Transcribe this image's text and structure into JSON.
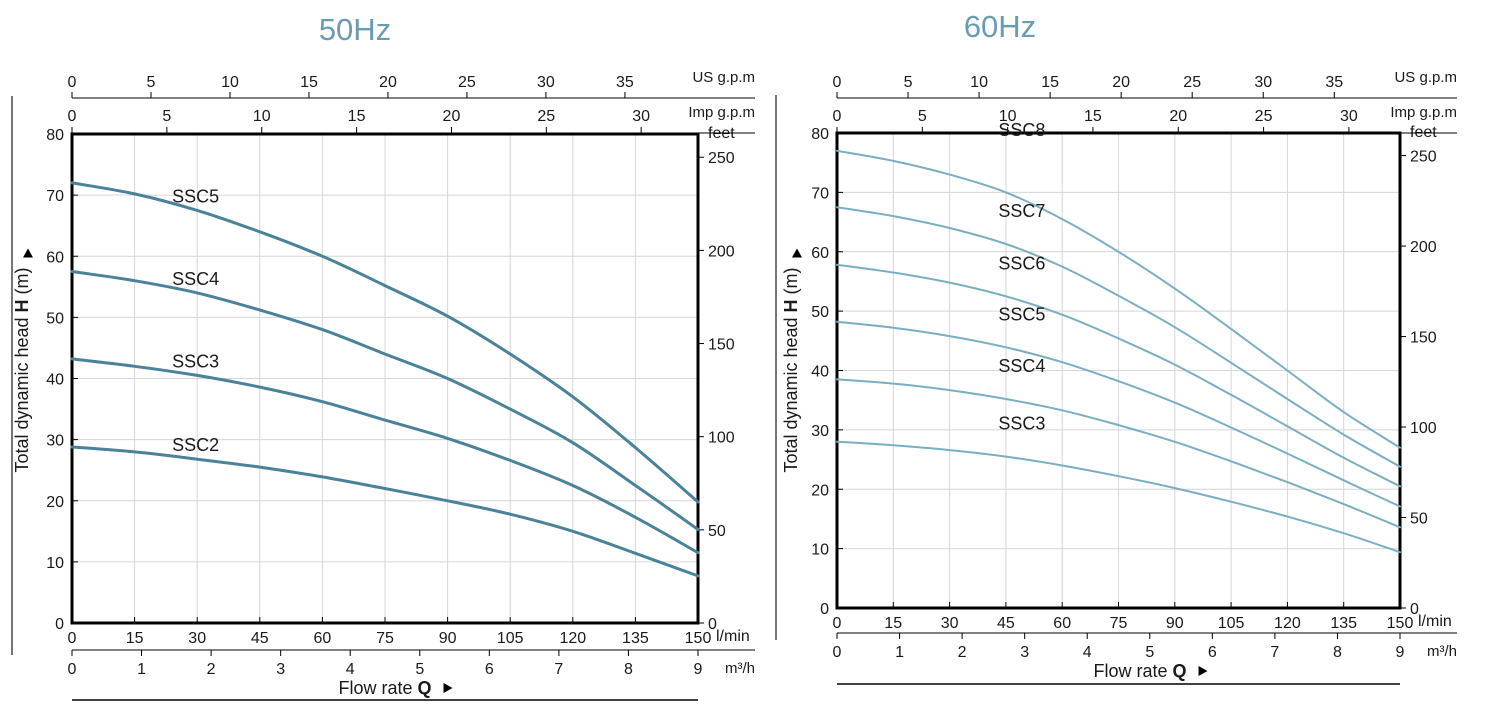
{
  "chart_data": [
    {
      "type": "line",
      "title": "50Hz",
      "ylabel": [
        "Total dynamic head ",
        "H",
        " (m)"
      ],
      "xlabel": [
        "Flow rate ",
        "Q"
      ],
      "x_unit": "l/min",
      "y_unit": "",
      "right_unit": "feet",
      "top1_unit": "US g.p.m",
      "top2_unit": "Imp g.p.m",
      "bottom2_unit": "m³/h",
      "xlim": [
        0,
        150
      ],
      "ylim": [
        0,
        80
      ],
      "xticks": [
        0,
        15,
        30,
        45,
        60,
        75,
        90,
        105,
        120,
        135,
        150
      ],
      "yticks": [
        0,
        10,
        20,
        30,
        40,
        50,
        60,
        70,
        80
      ],
      "grid": true,
      "feet_ticks": [
        0,
        50,
        100,
        150,
        200,
        250
      ],
      "usgpm_ticks": [
        0,
        5,
        10,
        15,
        20,
        25,
        30,
        35
      ],
      "impgpm_ticks": [
        0,
        5,
        10,
        15,
        20,
        25,
        30
      ],
      "m3h_ticks": [
        0,
        1,
        2,
        3,
        4,
        5,
        6,
        7,
        8,
        9
      ],
      "color": "#4a8299",
      "series": [
        {
          "name": "SSC5",
          "x": [
            0,
            15,
            30,
            45,
            60,
            75,
            90,
            105,
            120,
            135,
            150
          ],
          "values": [
            72,
            70.2,
            67.5,
            64,
            60,
            55.2,
            50.2,
            44,
            37,
            28.7,
            19.8
          ]
        },
        {
          "name": "SSC4",
          "x": [
            0,
            15,
            30,
            45,
            60,
            75,
            90,
            105,
            120,
            135,
            150
          ],
          "values": [
            57.5,
            56,
            54,
            51.2,
            48,
            44,
            40,
            35,
            29.5,
            22.5,
            15.3
          ]
        },
        {
          "name": "SSC3",
          "x": [
            0,
            15,
            30,
            45,
            60,
            75,
            90,
            105,
            120,
            135,
            150
          ],
          "values": [
            43.2,
            42,
            40.5,
            38.6,
            36.2,
            33.2,
            30.2,
            26.6,
            22.5,
            17.3,
            11.5
          ]
        },
        {
          "name": "SSC2",
          "x": [
            0,
            15,
            30,
            45,
            60,
            75,
            90,
            105,
            120,
            135,
            150
          ],
          "values": [
            28.8,
            28,
            26.8,
            25.5,
            23.9,
            22,
            20,
            17.8,
            15,
            11.4,
            7.7
          ]
        }
      ]
    },
    {
      "type": "line",
      "title": "60Hz",
      "ylabel": [
        "Total dynamic head ",
        "H",
        " (m)"
      ],
      "xlabel": [
        "Flow rate ",
        "Q"
      ],
      "x_unit": "l/min",
      "y_unit": "",
      "right_unit": "feet",
      "top1_unit": "US g.p.m",
      "top2_unit": "Imp g.p.m",
      "bottom2_unit": "m³/h",
      "xlim": [
        0,
        150
      ],
      "ylim": [
        0,
        80
      ],
      "xticks": [
        0,
        15,
        30,
        45,
        60,
        75,
        90,
        105,
        120,
        135,
        150
      ],
      "yticks": [
        0,
        10,
        20,
        30,
        40,
        50,
        60,
        70,
        80
      ],
      "grid": true,
      "feet_ticks": [
        0,
        50,
        100,
        150,
        200,
        250
      ],
      "usgpm_ticks": [
        0,
        5,
        10,
        15,
        20,
        25,
        30,
        35
      ],
      "impgpm_ticks": [
        0,
        5,
        10,
        15,
        20,
        25,
        30
      ],
      "m3h_ticks": [
        0,
        1,
        2,
        3,
        4,
        5,
        6,
        7,
        8,
        9
      ],
      "color": "#7aaec2",
      "series": [
        {
          "name": "SSC8",
          "x": [
            0,
            15,
            30,
            45,
            60,
            75,
            90,
            105,
            120,
            135,
            150
          ],
          "values": [
            77,
            75.3,
            73,
            70,
            65.5,
            60,
            53.8,
            47,
            40,
            33,
            27
          ]
        },
        {
          "name": "SSC7",
          "x": [
            0,
            15,
            30,
            45,
            60,
            75,
            90,
            105,
            120,
            135,
            150
          ],
          "values": [
            67.5,
            66,
            64,
            61.3,
            57.5,
            52.6,
            47.3,
            41.3,
            35.2,
            29.2,
            23.8
          ]
        },
        {
          "name": "SSC6",
          "x": [
            0,
            15,
            30,
            45,
            60,
            75,
            90,
            105,
            120,
            135,
            150
          ],
          "values": [
            57.8,
            56.5,
            54.8,
            52.5,
            49.4,
            45.4,
            41,
            35.9,
            30.6,
            25.3,
            20.5
          ]
        },
        {
          "name": "SSC5",
          "x": [
            0,
            15,
            30,
            45,
            60,
            75,
            90,
            105,
            120,
            135,
            150
          ],
          "values": [
            48.2,
            47.2,
            45.8,
            43.9,
            41.4,
            38.2,
            34.6,
            30.4,
            26,
            21.5,
            17.1
          ]
        },
        {
          "name": "SSC4",
          "x": [
            0,
            15,
            30,
            45,
            60,
            75,
            90,
            105,
            120,
            135,
            150
          ],
          "values": [
            38.5,
            37.8,
            36.7,
            35.2,
            33.3,
            30.8,
            28,
            24.7,
            21.2,
            17.5,
            13.6
          ]
        },
        {
          "name": "SSC3",
          "x": [
            0,
            15,
            30,
            45,
            60,
            75,
            90,
            105,
            120,
            135,
            150
          ],
          "values": [
            28,
            27.4,
            26.6,
            25.5,
            24,
            22.2,
            20.2,
            17.9,
            15.4,
            12.6,
            9.4
          ]
        }
      ]
    }
  ]
}
